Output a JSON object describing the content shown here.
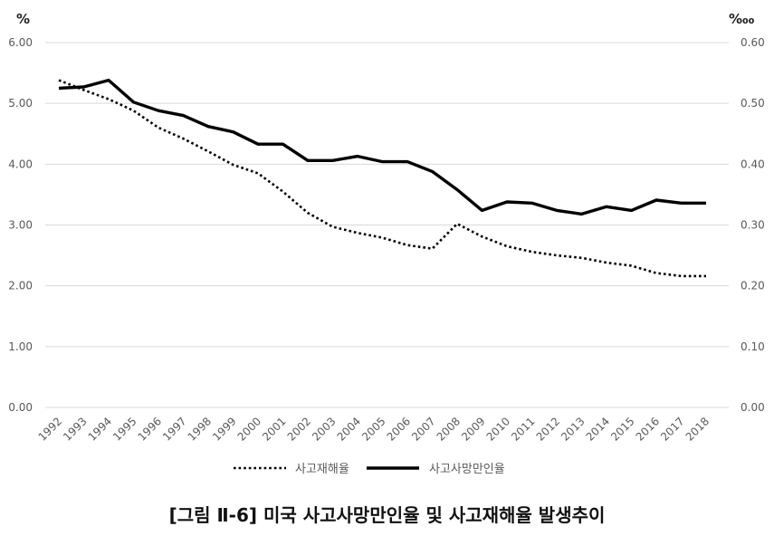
{
  "caption": "[그림 Ⅱ-6] 미국 사고사망만인율 및 사고재해율 발생추이",
  "chart_data": {
    "type": "line",
    "title": "",
    "left_axis_unit": "%",
    "right_axis_unit": "‱",
    "ylim_left": [
      0,
      6
    ],
    "ylim_right": [
      0,
      0.6
    ],
    "y_ticks_left": [
      "0.00",
      "1.00",
      "2.00",
      "3.00",
      "4.00",
      "5.00",
      "6.00"
    ],
    "y_ticks_right": [
      "0.00",
      "0.10",
      "0.20",
      "0.30",
      "0.40",
      "0.50",
      "0.60"
    ],
    "grid": true,
    "legend_position": "bottom",
    "categories": [
      "1992",
      "1993",
      "1994",
      "1995",
      "1996",
      "1997",
      "1998",
      "1999",
      "2000",
      "2001",
      "2002",
      "2003",
      "2004",
      "2005",
      "2006",
      "2007",
      "2008",
      "2009",
      "2010",
      "2011",
      "2012",
      "2013",
      "2014",
      "2015",
      "2016",
      "2017",
      "2018"
    ],
    "series": [
      {
        "name": "사고재해율",
        "axis": "left",
        "style": "dotted",
        "color": "#000000",
        "values": [
          5.38,
          5.22,
          5.07,
          4.88,
          4.6,
          4.42,
          4.21,
          3.99,
          3.85,
          3.55,
          3.2,
          2.97,
          2.87,
          2.79,
          2.67,
          2.61,
          3.02,
          2.81,
          2.65,
          2.56,
          2.5,
          2.46,
          2.38,
          2.33,
          2.21,
          2.16,
          2.16
        ]
      },
      {
        "name": "사고사망만인율",
        "axis": "right",
        "style": "solid",
        "color": "#000000",
        "values": [
          0.525,
          0.527,
          0.538,
          0.502,
          0.488,
          0.48,
          0.462,
          0.453,
          0.433,
          0.433,
          0.406,
          0.406,
          0.413,
          0.404,
          0.404,
          0.388,
          0.358,
          0.324,
          0.338,
          0.336,
          0.324,
          0.318,
          0.33,
          0.324,
          0.341,
          0.336,
          0.336
        ]
      }
    ]
  }
}
